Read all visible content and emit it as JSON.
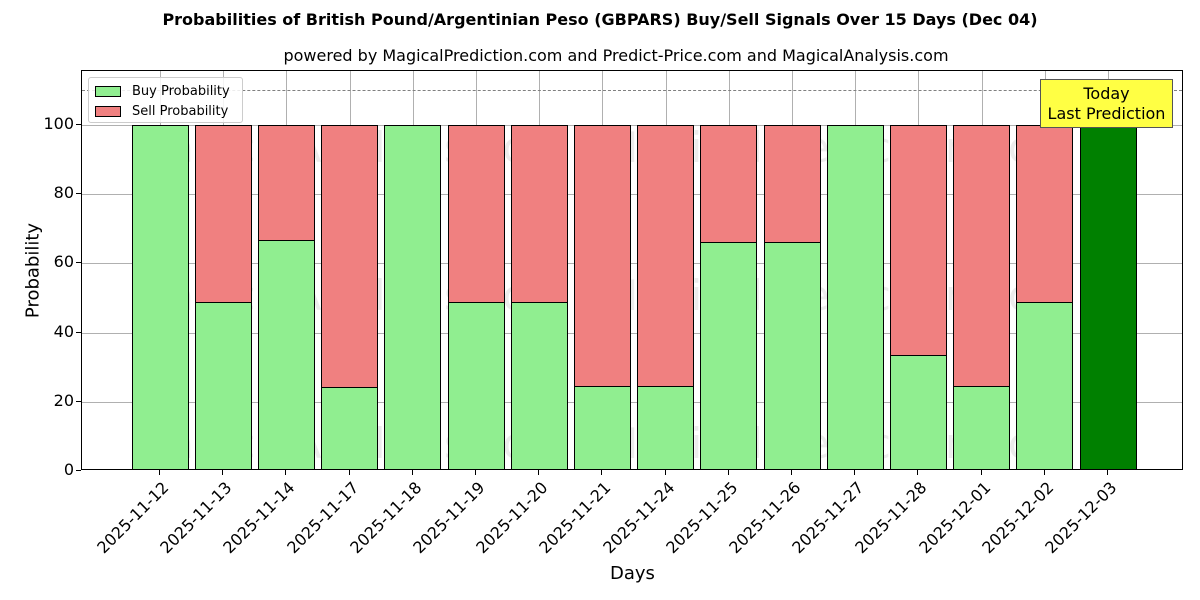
{
  "chart_data": {
    "type": "bar",
    "stacked": true,
    "title": "Probabilities of British Pound/Argentinian Peso (GBPARS) Buy/Sell Signals Over 15 Days (Dec 04)",
    "subtitle": "powered by MagicalPrediction.com and Predict-Price.com and MagicalAnalysis.com",
    "xlabel": "Days",
    "ylabel": "Probability",
    "ylim": [
      0,
      115
    ],
    "yticks": [
      0,
      20,
      40,
      60,
      80,
      100
    ],
    "grid": true,
    "legend_position": "upper left",
    "reference_line": 110,
    "categories": [
      "2025-11-12",
      "2025-11-13",
      "2025-11-14",
      "2025-11-17",
      "2025-11-18",
      "2025-11-19",
      "2025-11-20",
      "2025-11-21",
      "2025-11-24",
      "2025-11-25",
      "2025-11-26",
      "2025-11-27",
      "2025-11-28",
      "2025-12-01",
      "2025-12-02",
      "2025-12-03"
    ],
    "series": [
      {
        "name": "Buy Probability",
        "color": "#90ee90",
        "values": [
          100,
          48.8,
          66.9,
          24.3,
          100,
          48.8,
          48.8,
          24.6,
          24.6,
          66.3,
          66.3,
          100,
          33.5,
          24.6,
          48.8,
          100
        ]
      },
      {
        "name": "Sell Probability",
        "color": "#f08080",
        "values": [
          0,
          51.2,
          33.1,
          75.7,
          0,
          51.2,
          51.2,
          75.4,
          75.4,
          33.7,
          33.7,
          0,
          66.5,
          75.4,
          51.2,
          0
        ]
      }
    ],
    "highlight": {
      "index": 15,
      "color": "#008000",
      "label": "Today\nLast Prediction"
    },
    "annotation": {
      "line1": "Today",
      "line2": "Last Prediction",
      "background": "#ffff44"
    }
  },
  "legend": {
    "buy": "Buy Probability",
    "sell": "Sell Probability"
  },
  "watermarks": [
    "MagicalAnalysis.com",
    "MagicalPrediction.com"
  ]
}
